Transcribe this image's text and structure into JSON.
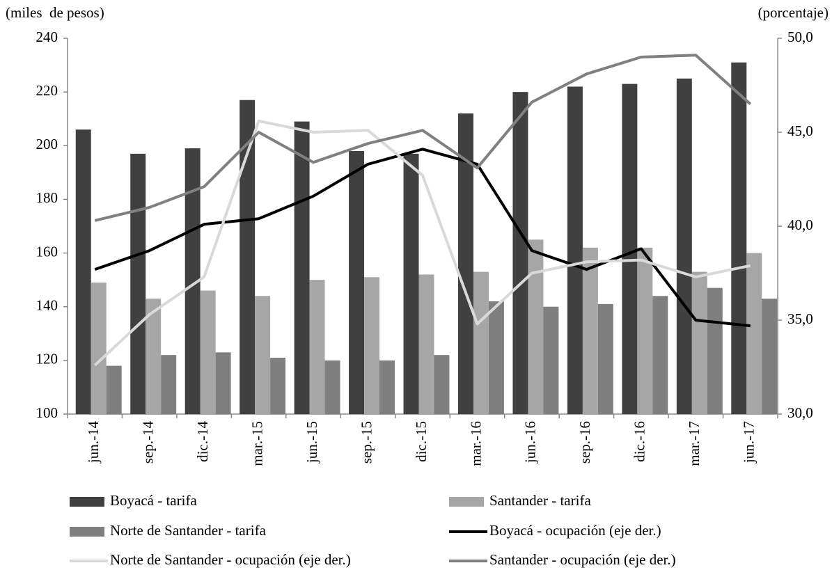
{
  "chart_data": {
    "type": "bar-line",
    "ylabel": "(miles  de pesos)",
    "y2label": "(porcentaje)",
    "categories": [
      "jun.-14",
      "sep.-14",
      "dic.-14",
      "mar.-15",
      "jun.-15",
      "sep.-15",
      "dic.-15",
      "mar.-16",
      "jun.-16",
      "sep.-16",
      "dic.-16",
      "mar.-17",
      "jun.-17"
    ],
    "ylim": [
      100,
      240
    ],
    "yticks": [
      100,
      120,
      140,
      160,
      180,
      200,
      220,
      240
    ],
    "y2lim": [
      30,
      50
    ],
    "y2ticks": [
      {
        "value": 30,
        "label": "30,0"
      },
      {
        "value": 35,
        "label": "35,0"
      },
      {
        "value": 40,
        "label": "40,0"
      },
      {
        "value": 45,
        "label": "45,0"
      },
      {
        "value": 50,
        "label": "50,0"
      }
    ],
    "series": [
      {
        "name": "Boyacá - tarifa",
        "type": "bar",
        "color": "#404040",
        "values": [
          206,
          197,
          199,
          217,
          209,
          198,
          197,
          212,
          220,
          222,
          223,
          225,
          231
        ]
      },
      {
        "name": "Santander - tarifa",
        "type": "bar",
        "color": "#a6a6a6",
        "values": [
          149,
          143,
          146,
          144,
          150,
          151,
          152,
          153,
          165,
          162,
          162,
          153,
          160
        ]
      },
      {
        "name": "Norte de Santander - tarifa",
        "type": "bar",
        "color": "#7f7f7f",
        "values": [
          118,
          122,
          123,
          121,
          120,
          120,
          122,
          142,
          140,
          141,
          144,
          147,
          143
        ]
      },
      {
        "name": "Boyacá - ocupación (eje der.)",
        "type": "line",
        "axis": "y2",
        "color": "#000000",
        "values": [
          37.7,
          38.7,
          40.1,
          40.4,
          41.6,
          43.3,
          44.1,
          43.3,
          38.7,
          37.7,
          38.8,
          35.0,
          34.7
        ]
      },
      {
        "name": "Norte de Santander - ocupación (eje der.)",
        "type": "line",
        "axis": "y2",
        "color": "#d9d9d9",
        "values": [
          32.6,
          35.3,
          37.3,
          45.6,
          45.0,
          45.1,
          42.7,
          34.8,
          37.5,
          38.1,
          38.2,
          37.3,
          37.9
        ]
      },
      {
        "name": "Santander - ocupación (eje der.)",
        "type": "line",
        "axis": "y2",
        "color": "#808080",
        "values": [
          40.3,
          41.0,
          42.1,
          45.0,
          43.4,
          44.4,
          45.1,
          43.1,
          46.6,
          48.1,
          49.0,
          49.1,
          46.5
        ]
      }
    ]
  }
}
